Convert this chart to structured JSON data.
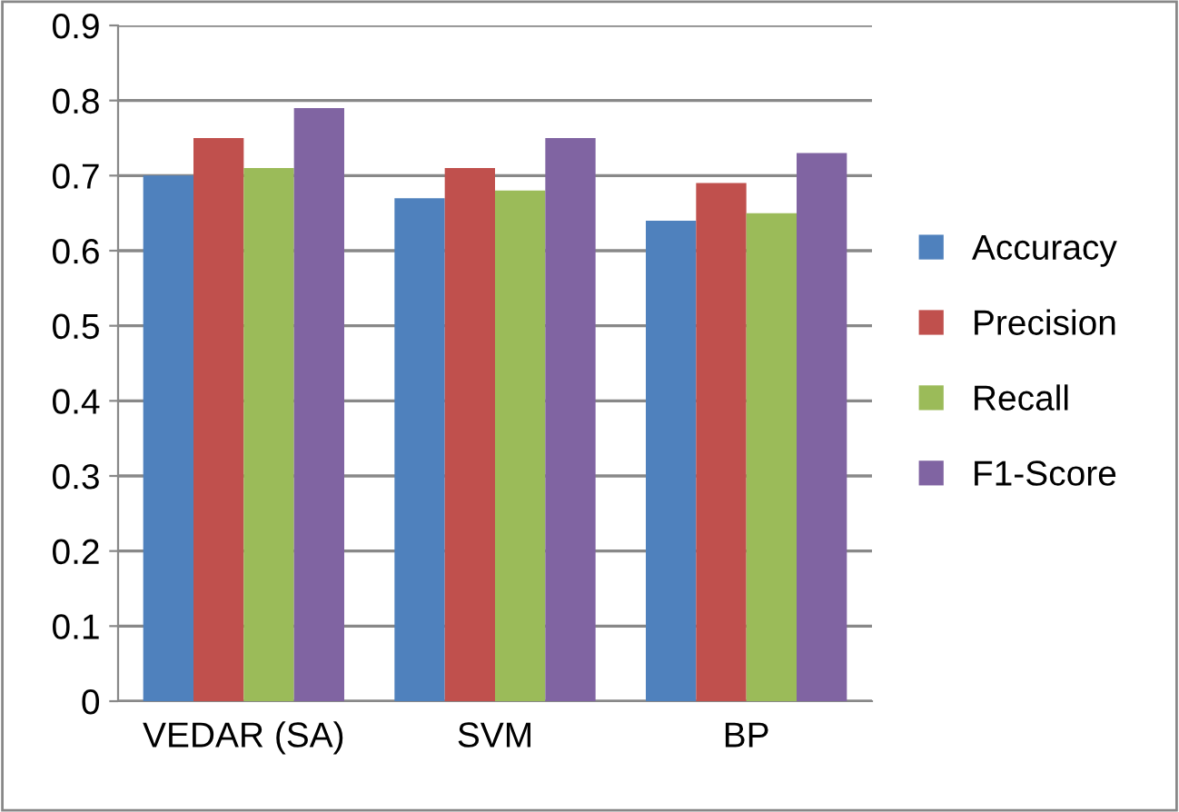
{
  "chart_data": {
    "type": "bar",
    "categories": [
      "VEDAR (SA)",
      "SVM",
      "BP"
    ],
    "series": [
      {
        "name": "Accuracy",
        "color": "#4f81bd",
        "values": [
          0.7,
          0.67,
          0.64
        ]
      },
      {
        "name": "Precision",
        "color": "#c0504d",
        "values": [
          0.75,
          0.71,
          0.69
        ]
      },
      {
        "name": "Recall",
        "color": "#9bbb59",
        "values": [
          0.71,
          0.68,
          0.65
        ]
      },
      {
        "name": "F1-Score",
        "color": "#8064a2",
        "values": [
          0.79,
          0.75,
          0.73
        ]
      }
    ],
    "ylim": [
      0,
      0.9
    ],
    "yticks": [
      0,
      0.1,
      0.2,
      0.3,
      0.4,
      0.5,
      0.6,
      0.7,
      0.8,
      0.9
    ],
    "grid": "y",
    "legend": "right"
  }
}
